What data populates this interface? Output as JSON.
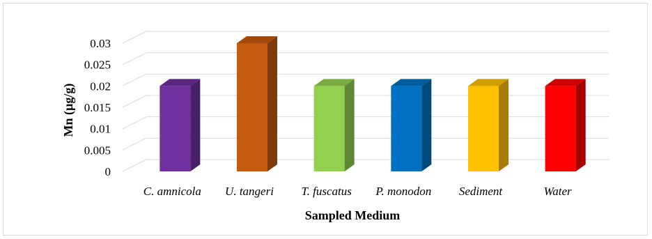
{
  "chart_data": {
    "type": "bar",
    "style": "3d-column",
    "categories": [
      "C. amnicola",
      "U. tangeri",
      "T. fuscatus",
      "P. monodon",
      "Sediment",
      "Water"
    ],
    "values": [
      0.02,
      0.03,
      0.02,
      0.02,
      0.02,
      0.02
    ],
    "colors": [
      "#7030a0",
      "#c55a11",
      "#92d050",
      "#0070c0",
      "#ffc000",
      "#ff0000"
    ],
    "xlabel": "Sampled Medium",
    "ylabel": "Mn (µg/g)",
    "ylim": [
      0,
      0.03
    ],
    "yticks": [
      0,
      0.005,
      0.01,
      0.015,
      0.02,
      0.025,
      0.03
    ],
    "ytick_labels": [
      "0",
      "0.005",
      "0.01",
      "0.015",
      "0.02",
      "0.025",
      "0.03"
    ],
    "grid": true,
    "legend": "none"
  }
}
